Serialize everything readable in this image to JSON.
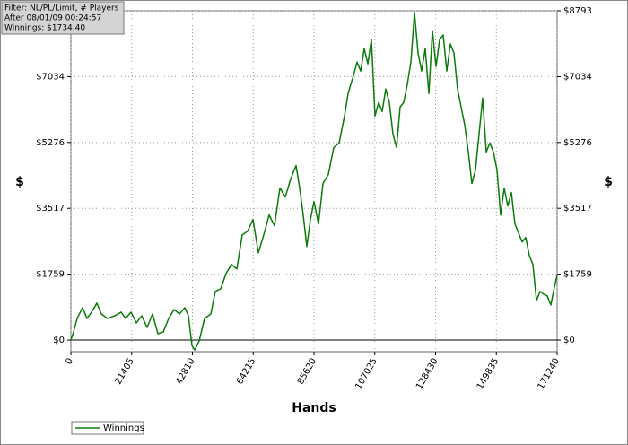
{
  "chart_data": {
    "type": "line",
    "filter_box": [
      "Filter: NL/PL/Limit, # Players",
      "After 08/01/09 00:24:57",
      "Winnings: $1734.40"
    ],
    "xlabel": "Hands",
    "ylabel": "$",
    "xlim": [
      0,
      171240
    ],
    "xticks": [
      0,
      21405,
      42810,
      64215,
      85620,
      107025,
      128430,
      149835,
      171240
    ],
    "ylim": [
      -310,
      8793
    ],
    "yticks": [
      {
        "value": 0,
        "label": "$0"
      },
      {
        "value": 1759,
        "label": "$1759"
      },
      {
        "value": 3517,
        "label": "$3517"
      },
      {
        "value": 5276,
        "label": "$5276"
      },
      {
        "value": 7034,
        "label": "$7034"
      },
      {
        "value": 8793,
        "label": "$8793"
      }
    ],
    "grid": true,
    "legend": "bottom-left",
    "series": [
      {
        "name": "Winnings",
        "color": "#0b7a0b",
        "x": [
          0,
          948,
          2212,
          4107,
          5687,
          7267,
          9162,
          10742,
          12954,
          15481,
          17693,
          19272,
          21168,
          23064,
          24959,
          26855,
          28751,
          30646,
          32542,
          34437,
          36333,
          38229,
          40124,
          41388,
          42652,
          43600,
          45179,
          47075,
          49287,
          50866,
          52762,
          54658,
          56553,
          58449,
          60345,
          62240,
          64136,
          66031,
          67927,
          69823,
          71718,
          73614,
          75510,
          77405,
          79301,
          80565,
          81829,
          83092,
          84356,
          85620,
          87199,
          88779,
          90675,
          92570,
          94466,
          96362,
          97625,
          99521,
          100785,
          102049,
          103312,
          104576,
          105840,
          107104,
          108367,
          109631,
          110895,
          112159,
          113422,
          114686,
          115950,
          117213,
          118477,
          119741,
          121005,
          122268,
          123532,
          124796,
          126060,
          127323,
          128587,
          129851,
          131115,
          132378,
          133642,
          134906,
          136170,
          137433,
          138697,
          139961,
          141225,
          142488,
          143752,
          145016,
          146280,
          147543,
          148807,
          150071,
          151335,
          152598,
          153862,
          155126,
          156390,
          157653,
          158917,
          160181,
          161444,
          162708,
          163972,
          165236,
          166500,
          167763,
          169027,
          170291,
          171240
        ],
        "values": [
          0,
          216,
          577,
          865,
          577,
          745,
          985,
          697,
          577,
          649,
          745,
          577,
          745,
          457,
          649,
          336,
          697,
          168,
          216,
          577,
          817,
          697,
          865,
          649,
          -144,
          -264,
          -24,
          577,
          697,
          1298,
          1370,
          1778,
          2018,
          1898,
          2811,
          2907,
          3220,
          2331,
          2811,
          3340,
          3051,
          4061,
          3820,
          4301,
          4661,
          4061,
          3340,
          2499,
          3220,
          3700,
          3100,
          4181,
          4421,
          5142,
          5262,
          5983,
          6584,
          7064,
          7424,
          7184,
          7785,
          7377,
          8025,
          5983,
          6343,
          6103,
          6703,
          6343,
          5502,
          5142,
          6223,
          6343,
          6824,
          7424,
          8746,
          7665,
          7184,
          7785,
          6584,
          8265,
          7304,
          8025,
          8145,
          7184,
          7905,
          7665,
          6703,
          6223,
          5743,
          5022,
          4181,
          4541,
          5502,
          6463,
          5022,
          5262,
          5022,
          4541,
          3340,
          4061,
          3580,
          3940,
          3100,
          2859,
          2619,
          2739,
          2259,
          2018,
          1057,
          1298,
          1225,
          1177,
          937,
          1418,
          1734.4
        ]
      }
    ]
  }
}
